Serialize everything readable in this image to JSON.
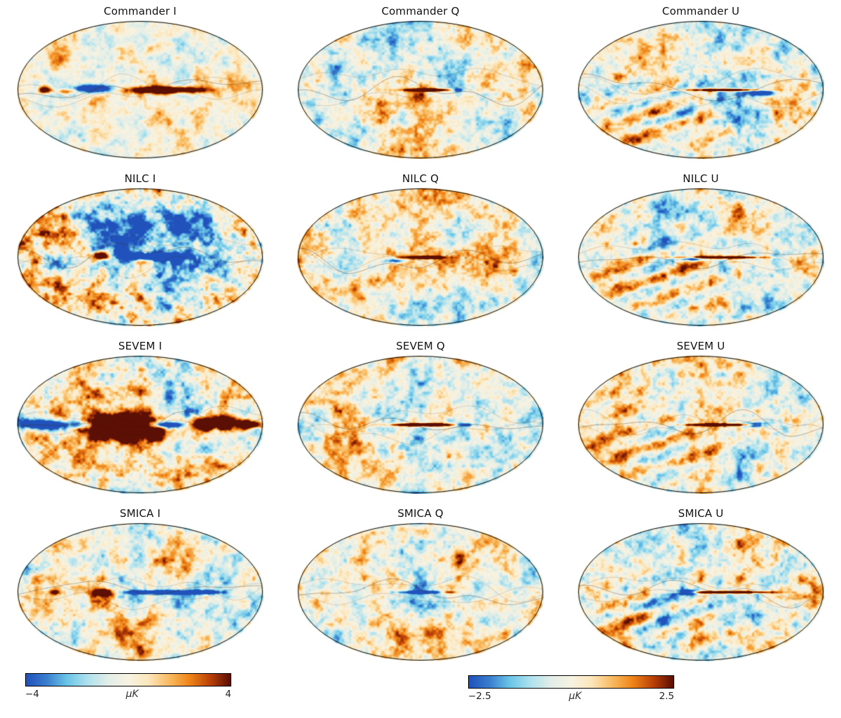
{
  "figure": {
    "panels": [
      {
        "id": "commander-i",
        "title": "Commander I",
        "method": "Commander",
        "stokes": "I"
      },
      {
        "id": "commander-q",
        "title": "Commander Q",
        "method": "Commander",
        "stokes": "Q"
      },
      {
        "id": "commander-u",
        "title": "Commander U",
        "method": "Commander",
        "stokes": "U"
      },
      {
        "id": "nilc-i",
        "title": "NILC I",
        "method": "NILC",
        "stokes": "I"
      },
      {
        "id": "nilc-q",
        "title": "NILC Q",
        "method": "NILC",
        "stokes": "Q"
      },
      {
        "id": "nilc-u",
        "title": "NILC U",
        "method": "NILC",
        "stokes": "U"
      },
      {
        "id": "sevem-i",
        "title": "SEVEM I",
        "method": "SEVEM",
        "stokes": "I"
      },
      {
        "id": "sevem-q",
        "title": "SEVEM Q",
        "method": "SEVEM",
        "stokes": "Q"
      },
      {
        "id": "sevem-u",
        "title": "SEVEM U",
        "method": "SEVEM",
        "stokes": "U"
      },
      {
        "id": "smica-i",
        "title": "SMICA I",
        "method": "SMICA",
        "stokes": "I"
      },
      {
        "id": "smica-q",
        "title": "SMICA Q",
        "method": "SMICA",
        "stokes": "Q"
      },
      {
        "id": "smica-u",
        "title": "SMICA U",
        "method": "SMICA",
        "stokes": "U"
      }
    ],
    "colorbars": [
      {
        "id": "temperature",
        "min_label": "−4",
        "max_label": "4",
        "unit": "μK"
      },
      {
        "id": "polarization",
        "min_label": "−2.5",
        "max_label": "2.5",
        "unit": "μK"
      }
    ],
    "colormap": {
      "stops": [
        "#2152bb",
        "#3a7fd0",
        "#6cc6e8",
        "#aee2ee",
        "#e2eee8",
        "#f8f3e2",
        "#fce7bc",
        "#f9bc62",
        "#f08619",
        "#bc4307",
        "#5c0f04"
      ]
    }
  },
  "chart_data": {
    "type": "heatmap",
    "projection": "mollweide",
    "grid": {
      "rows": 4,
      "cols": 3
    },
    "row_methods": [
      "Commander",
      "NILC",
      "SEVEM",
      "SMICA"
    ],
    "col_stokes": [
      "I",
      "Q",
      "U"
    ],
    "panel_titles": [
      "Commander I",
      "Commander Q",
      "Commander U",
      "NILC I",
      "NILC Q",
      "NILC U",
      "SEVEM I",
      "SEVEM Q",
      "SEVEM U",
      "SMICA I",
      "SMICA Q",
      "SMICA U"
    ],
    "colorbars": [
      {
        "applies_to": "I column",
        "range": [
          -4,
          4
        ],
        "unit": "μK"
      },
      {
        "applies_to": "Q and U columns",
        "range": [
          -2.5,
          2.5
        ],
        "unit": "μK"
      }
    ],
    "legend_position": "bottom",
    "colormap_stops": [
      "#2152bb",
      "#3a7fd0",
      "#6cc6e8",
      "#aee2ee",
      "#e2eee8",
      "#f8f3e2",
      "#fce7bc",
      "#f9bc62",
      "#f08619",
      "#bc4307",
      "#5c0f04"
    ]
  }
}
